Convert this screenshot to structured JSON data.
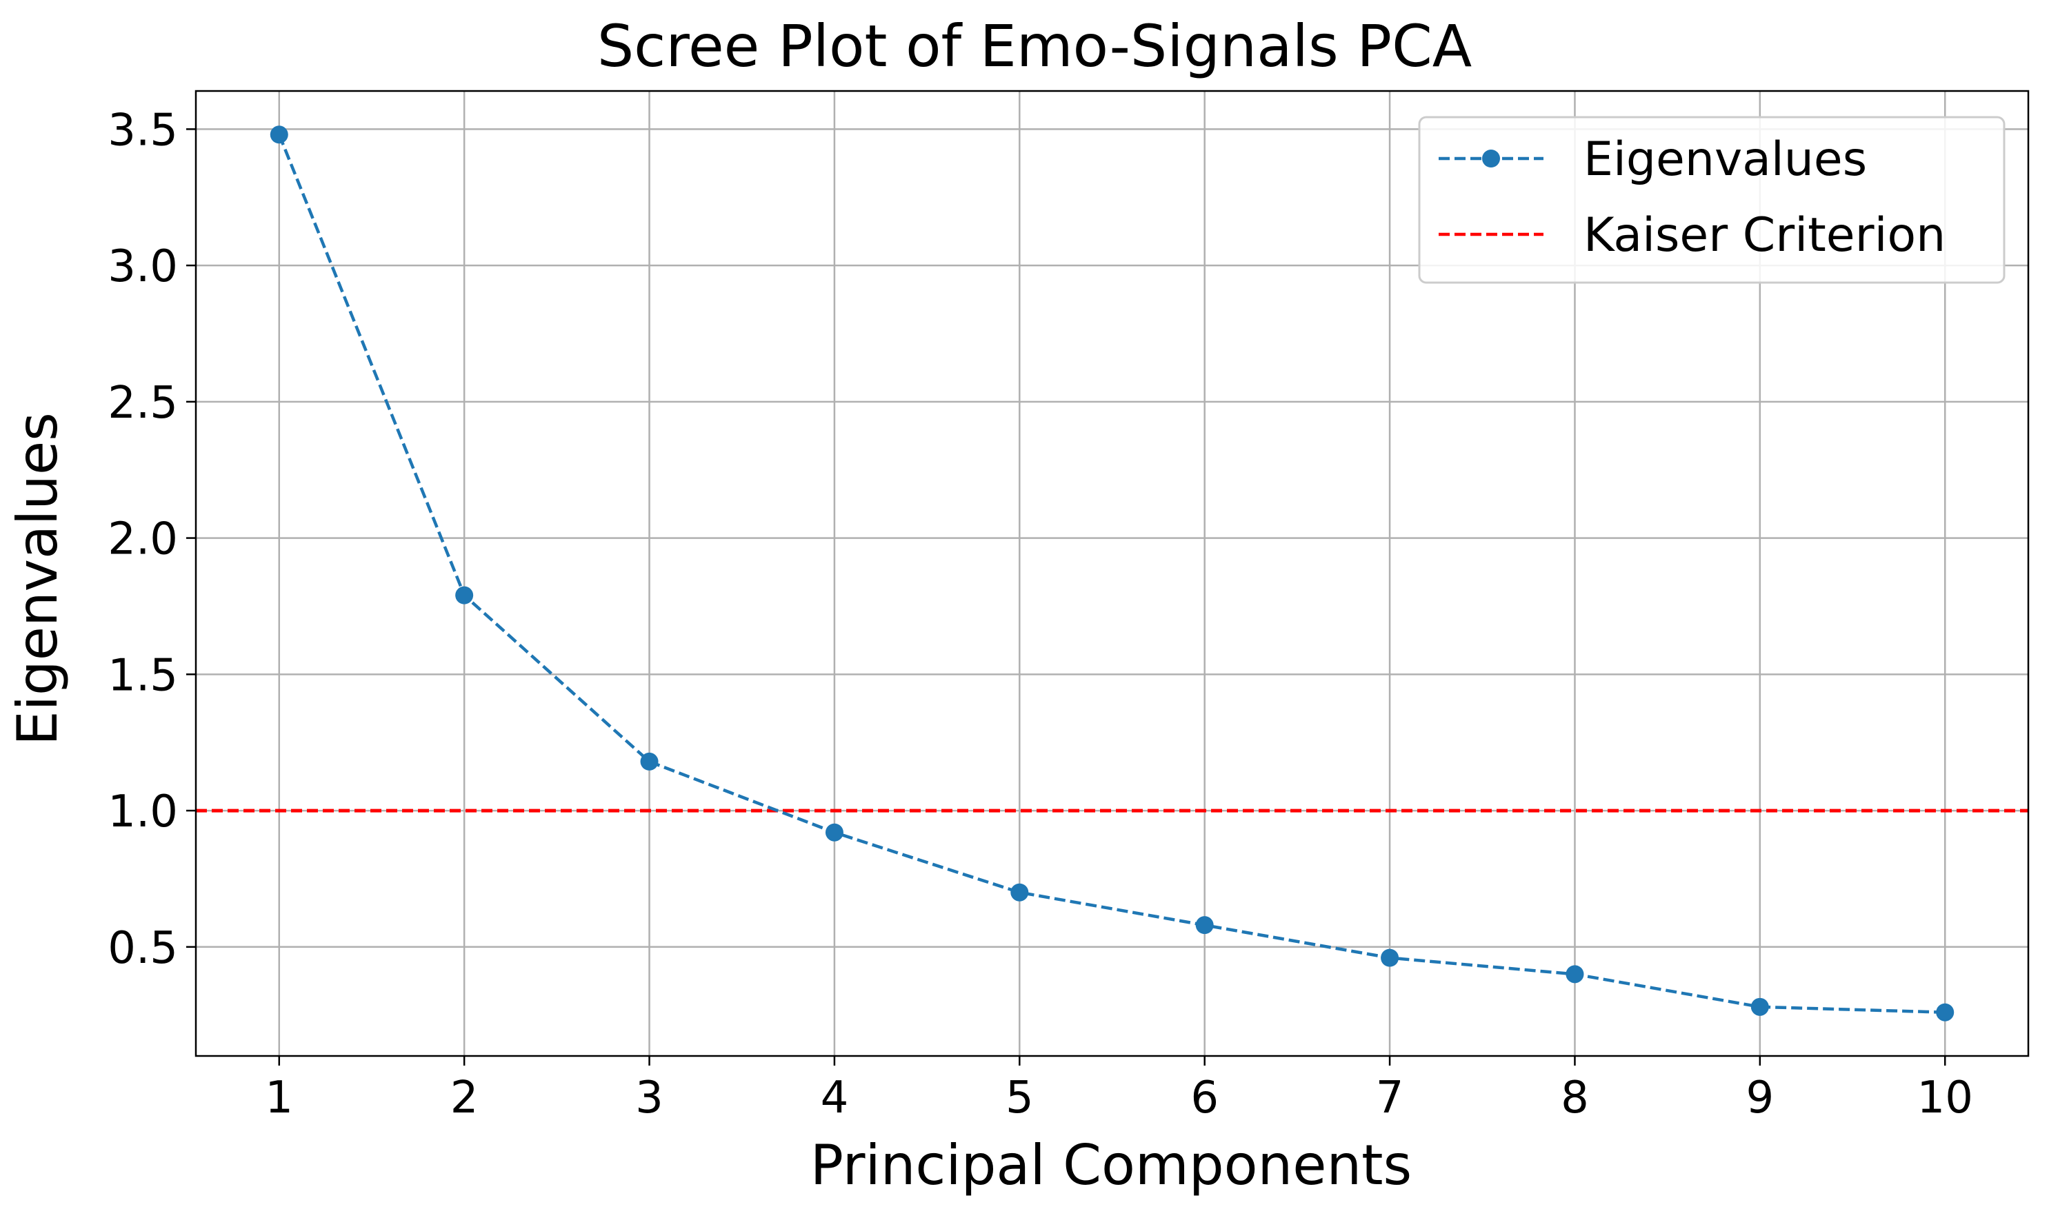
{
  "chart_data": {
    "type": "line",
    "title": "Scree Plot of Emo-Signals PCA",
    "xlabel": "Principal Components",
    "ylabel": "Eigenvalues",
    "x": [
      1,
      2,
      3,
      4,
      5,
      6,
      7,
      8,
      9,
      10
    ],
    "xticks": [
      "1",
      "2",
      "3",
      "4",
      "5",
      "6",
      "7",
      "8",
      "9",
      "10"
    ],
    "yticks": [
      "0.5",
      "1.0",
      "1.5",
      "2.0",
      "2.5",
      "3.0",
      "3.5"
    ],
    "xlim": [
      0.55,
      10.45
    ],
    "ylim": [
      0.1,
      3.64
    ],
    "grid": true,
    "legend_position": "top-right",
    "series": [
      {
        "name": "Eigenvalues",
        "values": [
          3.48,
          1.79,
          1.18,
          0.92,
          0.7,
          0.58,
          0.46,
          0.4,
          0.28,
          0.26
        ],
        "color": "#1f77b4",
        "line_style": "dashed",
        "marker": "circle"
      }
    ],
    "reference_lines": [
      {
        "name": "Kaiser Criterion",
        "y": 1.0,
        "color": "#ff0000",
        "line_style": "dashed"
      }
    ]
  }
}
